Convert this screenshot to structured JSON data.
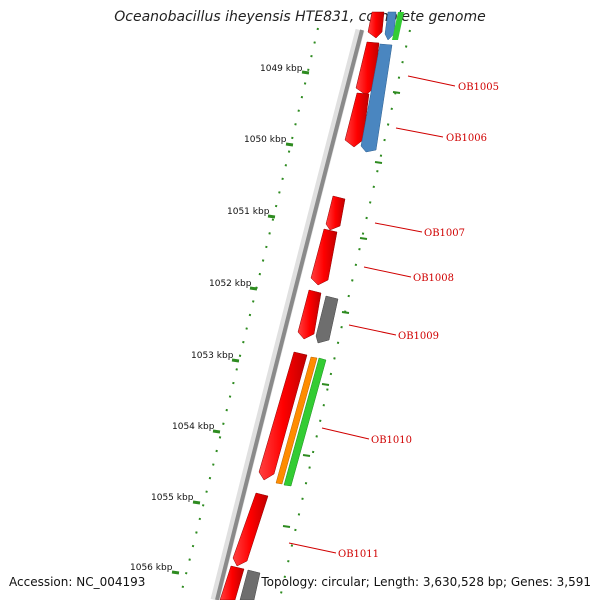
{
  "title": "Oceanobacillus iheyensis HTE831, complete genome",
  "footer": {
    "accession": "Accession: NC_004193",
    "summary": "Topology: circular; Length: 3,630,528 bp; Genes: 3,591"
  },
  "ticks": [
    {
      "label": "1049 kbp"
    },
    {
      "label": "1050 kbp"
    },
    {
      "label": "1051 kbp"
    },
    {
      "label": "1052 kbp"
    },
    {
      "label": "1053 kbp"
    },
    {
      "label": "1054 kbp"
    },
    {
      "label": "1055 kbp"
    },
    {
      "label": "1056 kbp"
    }
  ],
  "gene_labels": [
    {
      "label": "OB1005"
    },
    {
      "label": "OB1006"
    },
    {
      "label": "OB1007"
    },
    {
      "label": "OB1008"
    },
    {
      "label": "OB1009"
    },
    {
      "label": "OB1010"
    },
    {
      "label": "OB1011"
    }
  ],
  "colors": {
    "backbone": "#8a8a8a",
    "gene_red": "#ff0000",
    "gene_blue": "#4a86c0",
    "gene_gray": "#6e6e6e",
    "gene_green": "#33cc33",
    "gene_orange": "#ff8c00",
    "tick_green": "#2e8b20",
    "label_red": "#d00000"
  }
}
